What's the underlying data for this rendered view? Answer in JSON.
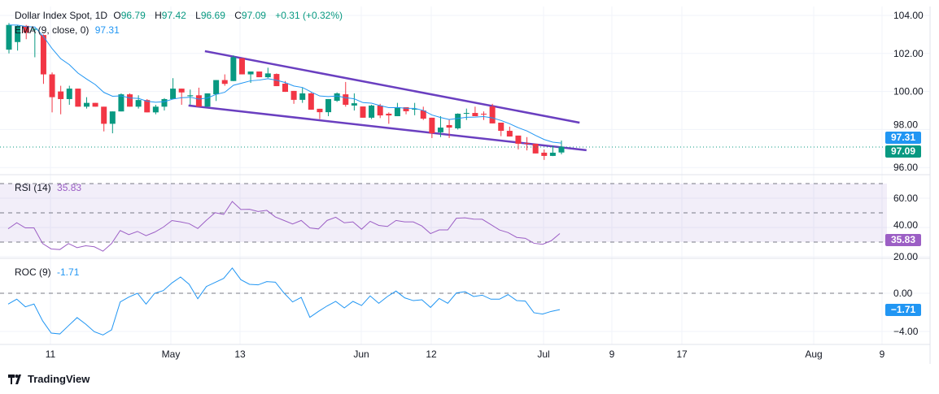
{
  "header": {
    "symbol": "Dollar Index Spot, 1D",
    "open_label": "O",
    "open": "96.79",
    "high_label": "H",
    "high": "97.42",
    "low_label": "L",
    "low": "96.69",
    "close_label": "C",
    "close": "97.09",
    "change": "+0.31 (+0.32%)"
  },
  "ema": {
    "label": "EMA (9, close, 0)",
    "value": "97.31"
  },
  "rsi": {
    "label": "RSI (14)",
    "value": "35.83"
  },
  "roc": {
    "label": "ROC (9)",
    "value": "-1.71"
  },
  "price_tags": {
    "ema": "97.31",
    "close": "97.09",
    "rsi": "35.83",
    "roc": "−1.71"
  },
  "price_axis": [
    "104.00",
    "102.00",
    "100.00",
    "98.00",
    "96.00"
  ],
  "rsi_axis": [
    "60.00",
    "40.00",
    "20.00"
  ],
  "roc_axis": [
    "0.00",
    "−4.00"
  ],
  "x_axis": [
    "11",
    "May",
    "13",
    "Jun",
    "12",
    "Jul",
    "9",
    "17",
    "Aug",
    "9"
  ],
  "colors": {
    "up": "#089981",
    "down": "#f23645",
    "ema": "#2196f3",
    "channel": "#6a3fc0",
    "rsi": "#9c5fc5",
    "roc": "#2196f3"
  },
  "brand": "TradingView",
  "chart_data": {
    "type": "candlestick",
    "ohlc": [
      [
        102.2,
        103.6,
        102.0,
        103.5
      ],
      [
        102.6,
        103.5,
        102.15,
        103.45
      ],
      [
        103.45,
        103.5,
        102.75,
        103.1
      ],
      [
        103.25,
        103.3,
        101.8,
        103.3
      ],
      [
        102.97,
        103.0,
        100.4,
        100.9
      ],
      [
        100.9,
        101.0,
        98.9,
        99.7
      ],
      [
        100.0,
        100.3,
        98.8,
        99.6
      ],
      [
        99.6,
        100.3,
        99.3,
        100.15
      ],
      [
        100.15,
        100.15,
        99.2,
        99.2
      ],
      [
        99.2,
        99.7,
        99.1,
        99.4
      ],
      [
        99.4,
        99.4,
        99.2,
        99.2
      ],
      [
        99.2,
        99.2,
        97.9,
        98.3
      ],
      [
        98.3,
        98.95,
        97.8,
        98.95
      ],
      [
        98.95,
        99.9,
        98.95,
        99.85
      ],
      [
        99.85,
        99.9,
        99.2,
        99.2
      ],
      [
        99.2,
        99.8,
        99.1,
        99.55
      ],
      [
        99.55,
        99.6,
        98.9,
        98.9
      ],
      [
        98.9,
        99.3,
        98.8,
        99.2
      ],
      [
        99.2,
        99.65,
        99.0,
        99.6
      ],
      [
        99.6,
        100.7,
        99.6,
        100.15
      ],
      [
        100.15,
        100.15,
        99.3,
        99.95
      ],
      [
        99.75,
        100.1,
        99.3,
        99.8
      ],
      [
        99.8,
        100.2,
        99.2,
        99.2
      ],
      [
        99.2,
        99.9,
        99.2,
        99.9
      ],
      [
        99.85,
        100.6,
        99.5,
        100.6
      ],
      [
        100.6,
        100.9,
        100.3,
        100.4
      ],
      [
        100.55,
        101.9,
        100.55,
        101.8
      ],
      [
        101.75,
        101.75,
        100.9,
        100.9
      ],
      [
        100.9,
        101.05,
        100.45,
        101.05
      ],
      [
        101.05,
        101.05,
        100.75,
        100.75
      ],
      [
        100.75,
        101.25,
        100.7,
        100.95
      ],
      [
        100.92,
        100.95,
        100.28,
        100.28
      ],
      [
        100.41,
        100.55,
        99.98,
        99.98
      ],
      [
        100.03,
        100.03,
        99.35,
        99.56
      ],
      [
        99.56,
        100.2,
        99.4,
        99.9
      ],
      [
        99.9,
        99.95,
        99.04,
        99.04
      ],
      [
        99.09,
        99.09,
        98.55,
        98.91
      ],
      [
        98.91,
        99.6,
        98.7,
        99.6
      ],
      [
        99.51,
        99.95,
        99.45,
        99.9
      ],
      [
        99.85,
        100.5,
        99.2,
        99.3
      ],
      [
        99.26,
        99.9,
        99.0,
        99.38
      ],
      [
        99.21,
        99.21,
        98.62,
        98.62
      ],
      [
        98.62,
        99.3,
        98.55,
        99.26
      ],
      [
        99.26,
        99.35,
        98.6,
        98.74
      ],
      [
        98.83,
        98.9,
        98.3,
        98.74
      ],
      [
        98.7,
        99.4,
        98.7,
        99.17
      ],
      [
        99.17,
        99.17,
        98.8,
        98.96
      ],
      [
        99.05,
        99.4,
        98.75,
        99.09
      ],
      [
        99.0,
        99.2,
        98.5,
        98.57
      ],
      [
        98.62,
        98.62,
        97.55,
        97.8
      ],
      [
        97.85,
        98.7,
        97.6,
        98.1
      ],
      [
        98.23,
        98.55,
        97.55,
        98.1
      ],
      [
        98.06,
        98.85,
        98.0,
        98.83
      ],
      [
        98.83,
        99.1,
        98.5,
        98.87
      ],
      [
        98.87,
        99.2,
        98.7,
        98.7
      ],
      [
        98.83,
        98.95,
        98.5,
        98.79
      ],
      [
        99.21,
        99.35,
        98.32,
        98.32
      ],
      [
        98.36,
        98.36,
        97.65,
        97.93
      ],
      [
        97.93,
        98.15,
        97.63,
        97.63
      ],
      [
        97.68,
        97.68,
        96.95,
        97.25
      ],
      [
        97.29,
        97.6,
        96.9,
        97.25
      ],
      [
        97.25,
        97.25,
        96.74,
        96.74
      ],
      [
        96.78,
        96.95,
        96.4,
        96.61
      ],
      [
        96.61,
        97.15,
        96.6,
        96.78
      ],
      [
        96.79,
        97.42,
        96.69,
        97.09
      ]
    ],
    "ema_period": 9,
    "trendlines": [
      {
        "from": [
          22.7,
          102.12
        ],
        "to": [
          66.1,
          98.36
        ]
      },
      {
        "from": [
          20.8,
          99.26
        ],
        "to": [
          66.9,
          96.91
        ]
      }
    ],
    "rsi": [
      39.1,
      43.2,
      39.7,
      39.7,
      29.0,
      25.3,
      24.9,
      29.0,
      26.2,
      27.5,
      26.8,
      23.8,
      29.0,
      37.9,
      35.1,
      37.3,
      34.4,
      36.8,
      40.2,
      44.7,
      43.8,
      42.6,
      39.3,
      44.9,
      50.1,
      48.9,
      57.8,
      52.3,
      52.4,
      50.9,
      51.7,
      47.2,
      44.8,
      42.4,
      44.8,
      39.7,
      39.0,
      44.8,
      47.0,
      43.2,
      43.8,
      38.8,
      44.2,
      41.4,
      40.7,
      44.8,
      43.8,
      43.8,
      41.0,
      35.8,
      38.3,
      38.3,
      46.3,
      46.6,
      45.7,
      45.6,
      42.0,
      38.3,
      36.5,
      33.2,
      32.6,
      29.2,
      28.5,
      30.9,
      35.83
    ],
    "rsi_levels": [
      70,
      50,
      30
    ],
    "roc": [
      -1.13,
      -0.62,
      -1.42,
      -1.13,
      -2.89,
      -4.17,
      -4.26,
      -3.4,
      -2.55,
      -3.23,
      -4.03,
      -4.37,
      -3.83,
      -0.91,
      -0.4,
      0,
      -1.13,
      0,
      0.28,
      1.08,
      1.7,
      0.94,
      -0.57,
      0.71,
      1.13,
      1.56,
      2.64,
      1.42,
      0.94,
      0.88,
      1.22,
      1.16,
      0.03,
      -0.91,
      -0.43,
      -2.52,
      -1.9,
      -1.33,
      -0.85,
      -1.53,
      -0.85,
      -1.28,
      -0.28,
      -1.05,
      -0.34,
      0.23,
      -0.48,
      -0.77,
      -0.68,
      -1.48,
      -0.54,
      -1.05,
      0.03,
      0.17,
      -0.34,
      -0.2,
      -0.62,
      -0.62,
      -0.14,
      -0.77,
      -0.82,
      -2.04,
      -2.18,
      -1.9,
      -1.71
    ],
    "roc_levels": [
      0
    ],
    "price_range": [
      96,
      104
    ],
    "grid": true
  }
}
